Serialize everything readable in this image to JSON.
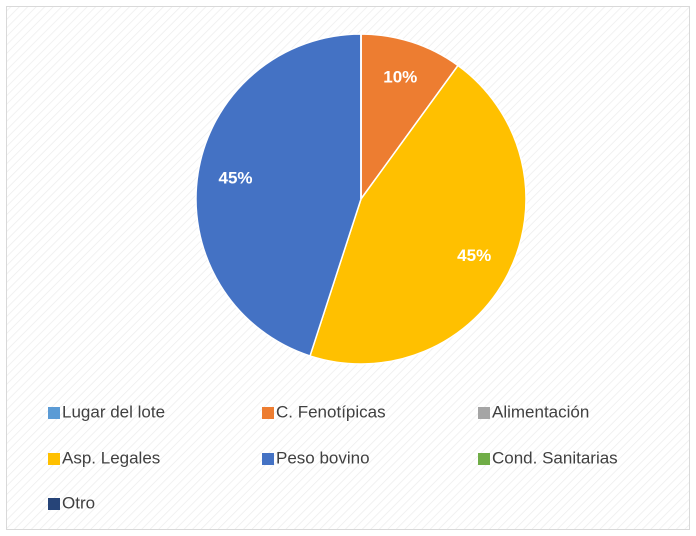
{
  "chart_data": {
    "type": "pie",
    "categories": [
      "Lugar del lote",
      "C. Fenotípicas",
      "Alimentación",
      "Asp. Legales",
      "Peso bovino",
      "Cond. Sanitarias",
      "Otro"
    ],
    "values": [
      0,
      10,
      0,
      45,
      45,
      0,
      0
    ],
    "value_labels": [
      null,
      "10%",
      null,
      "45%",
      "45%",
      null,
      null
    ],
    "colors": [
      "#5b9bd5",
      "#ed7d31",
      "#a5a5a5",
      "#ffc000",
      "#4472c4",
      "#70ad47",
      "#264478"
    ],
    "legend": "bottom"
  }
}
